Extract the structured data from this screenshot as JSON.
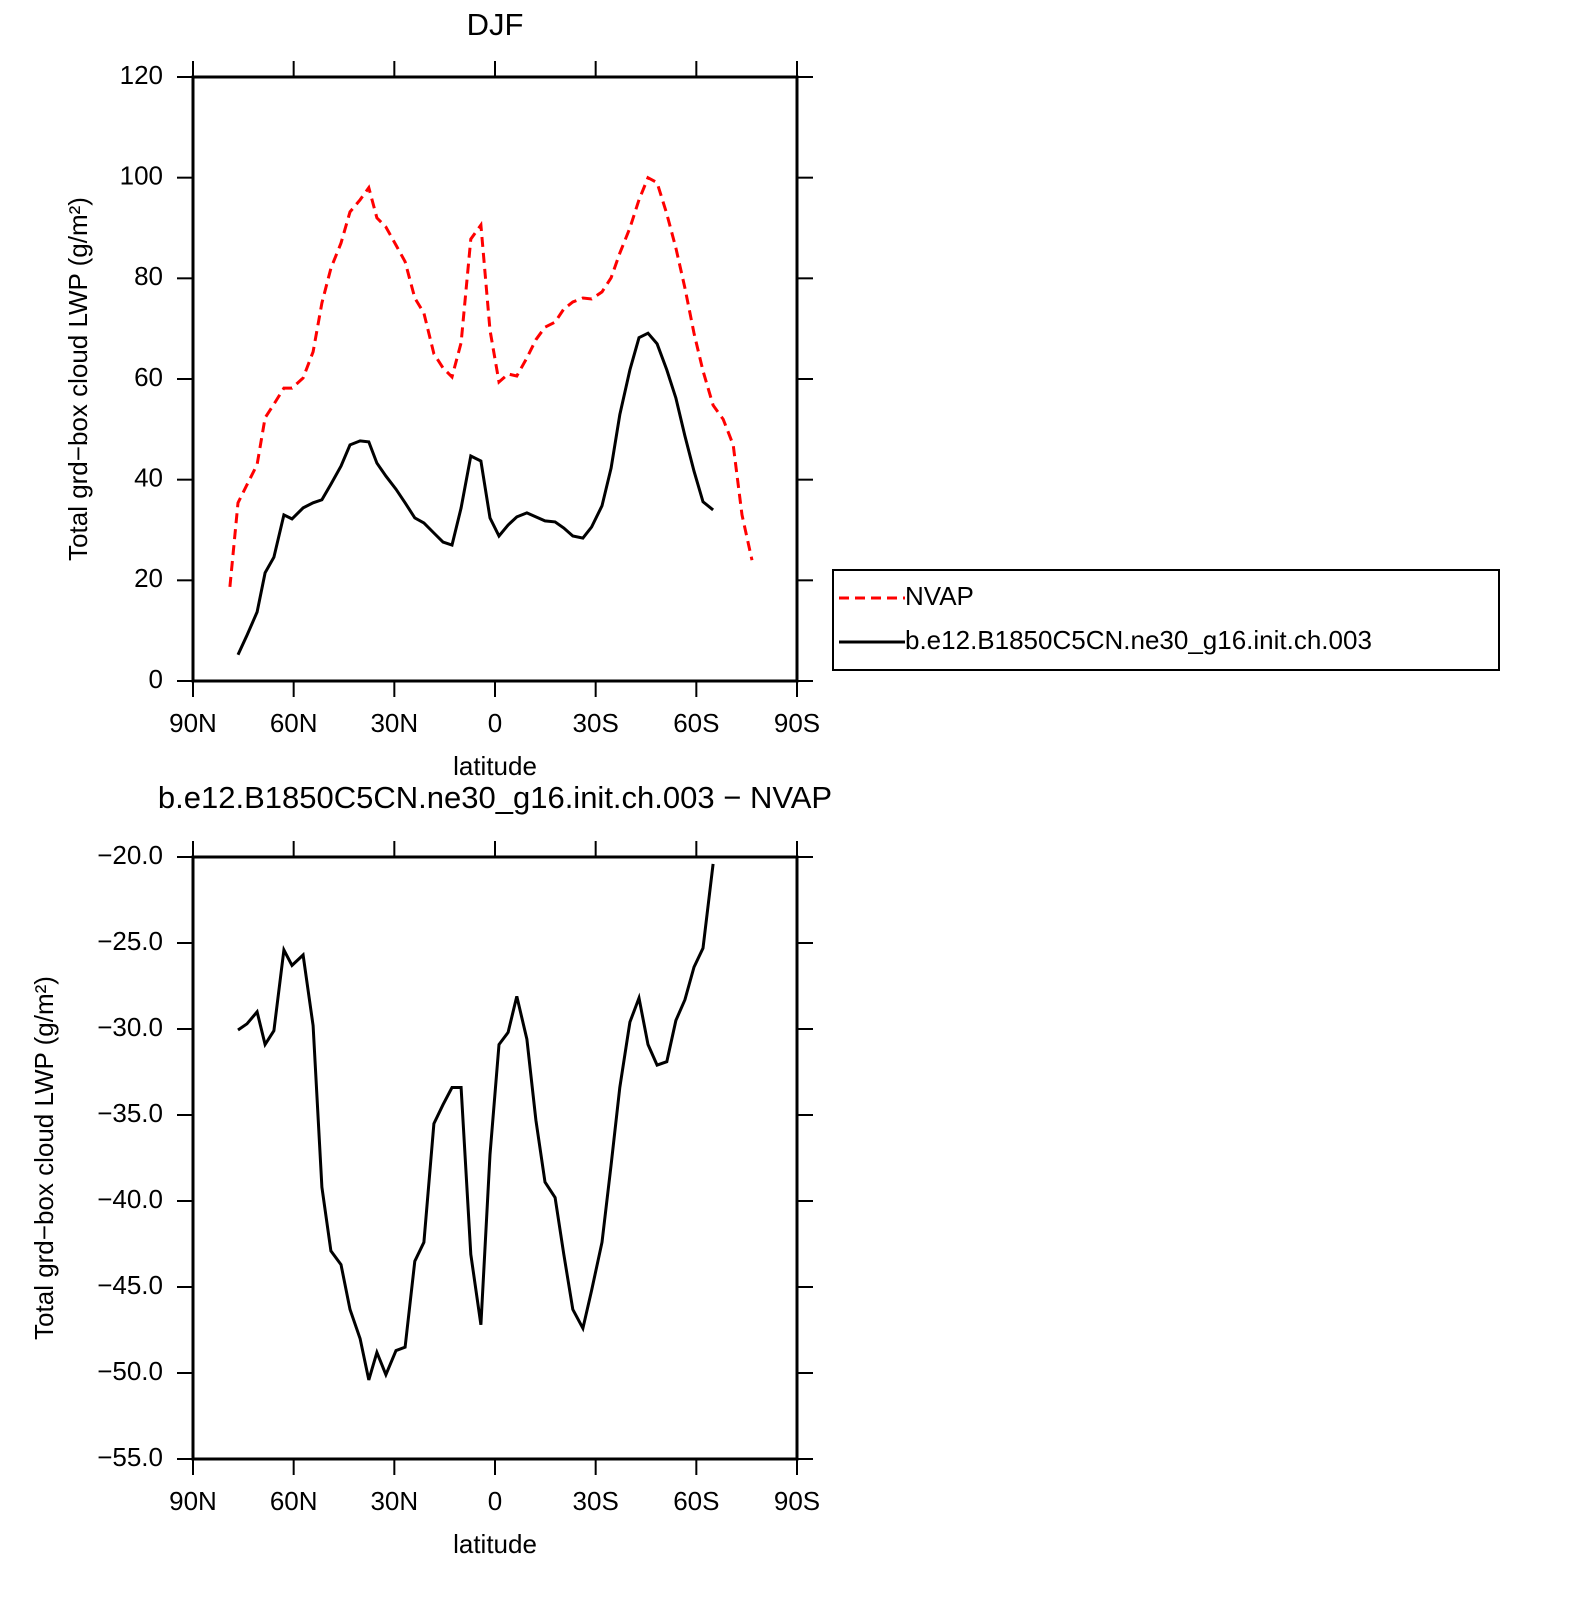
{
  "chart_data": [
    {
      "type": "line",
      "title": "DJF",
      "xlabel": "latitude",
      "ylabel": "Total grd−box cloud LWP (g/m²)",
      "x": [
        79,
        76.6,
        73.9,
        70.9,
        68.5,
        65.9,
        62.9,
        60.5,
        57.2,
        54.2,
        51.6,
        48.9,
        45.9,
        43.2,
        40.2,
        37.6,
        35.2,
        32.5,
        29.5,
        26.8,
        23.9,
        21.2,
        18.2,
        15.5,
        12.8,
        10.1,
        7.2,
        4.2,
        1.5,
        -1.2,
        -3.9,
        -6.5,
        -9.5,
        -12.2,
        -14.9,
        -17.9,
        -20.5,
        -23.2,
        -26.2,
        -28.8,
        -31.9,
        -34.6,
        -37.2,
        -40.2,
        -42.9,
        -45.6,
        -48.3,
        -51.2,
        -53.9,
        -56.6,
        -59.3,
        -62,
        -65,
        -68,
        -71,
        -73.6,
        -76.6
      ],
      "series": [
        {
          "name": "NVAP",
          "color": "#ff0000",
          "line_style": "dashed",
          "values": [
            18.7,
            35.4,
            39,
            43,
            52.3,
            55,
            58.2,
            58.2,
            60.2,
            65.4,
            75.1,
            82,
            87,
            93.2,
            95.6,
            98,
            92,
            90.2,
            86.6,
            83.3,
            76.1,
            73.1,
            65,
            62.2,
            60.4,
            67.2,
            87.8,
            90.6,
            69.7,
            59.4,
            61,
            60.6,
            64.2,
            67.8,
            70.3,
            71.3,
            73.9,
            75.3,
            76.1,
            75.9,
            77.3,
            80.1,
            85,
            90,
            95.6,
            100,
            99,
            92.8,
            86,
            78.1,
            69.1,
            61.6,
            54.8,
            52,
            46.9,
            33,
            24
          ]
        },
        {
          "name": "b.e12.B1850C5CN.ne30_g16.init.ch.003",
          "color": "#000000",
          "line_style": "solid",
          "values": [
            null,
            5.2,
            9.1,
            13.7,
            21.5,
            24.6,
            33,
            32.2,
            34.4,
            35.4,
            36,
            39.1,
            42.7,
            46.9,
            47.7,
            47.5,
            43.3,
            40.7,
            38.1,
            35.4,
            32.4,
            31.4,
            29.4,
            27.6,
            27,
            34.4,
            44.7,
            43.7,
            32.4,
            28.8,
            31,
            32.6,
            33.4,
            32.6,
            31.8,
            31.6,
            30.4,
            28.8,
            28.4,
            30.6,
            34.8,
            42.3,
            52.9,
            61.8,
            68.2,
            69.1,
            67,
            61.8,
            56.2,
            48.7,
            41.7,
            35.6,
            34,
            null,
            null,
            null,
            null
          ]
        }
      ],
      "xlim": [
        90,
        -90
      ],
      "xticks": [
        {
          "value": 90,
          "label": "90N"
        },
        {
          "value": 60,
          "label": "60N"
        },
        {
          "value": 30,
          "label": "30N"
        },
        0,
        {
          "value": -30,
          "label": "30S"
        },
        {
          "value": -60,
          "label": "60S"
        },
        {
          "value": -90,
          "label": "90S"
        }
      ],
      "ylim": [
        0,
        120
      ],
      "yticks": [
        0,
        20,
        40,
        60,
        80,
        100,
        120
      ],
      "legend": "right"
    },
    {
      "type": "line",
      "title": "b.e12.B1850C5CN.ne30_g16.init.ch.003 − NVAP",
      "xlabel": "latitude",
      "ylabel": "Total grd−box cloud LWP (g/m²)",
      "x": [
        76.6,
        73.9,
        70.9,
        68.5,
        65.9,
        62.9,
        60.5,
        57.2,
        54.2,
        51.6,
        48.9,
        45.9,
        43.2,
        40.2,
        37.6,
        35.2,
        32.5,
        29.5,
        26.8,
        23.9,
        21.2,
        18.2,
        15.5,
        12.8,
        10.1,
        7.2,
        4.2,
        1.5,
        -1.2,
        -3.9,
        -6.5,
        -9.5,
        -12.2,
        -14.9,
        -17.9,
        -20.5,
        -23.2,
        -26.2,
        -28.8,
        -31.9,
        -34.6,
        -37.2,
        -40.2,
        -42.9,
        -45.6,
        -48.3,
        -51.2,
        -53.9,
        -56.6,
        -59.3,
        -62,
        -65
      ],
      "series": [
        {
          "color": "#000000",
          "line_style": "solid",
          "values": [
            -30.06,
            -29.7,
            -29,
            -30.9,
            -30.1,
            -25.4,
            -26.3,
            -25.7,
            -29.8,
            -39.2,
            -42.9,
            -43.7,
            -46.3,
            -48,
            -50.4,
            -48.8,
            -50.1,
            -48.7,
            -48.5,
            -43.5,
            -42.4,
            -35.5,
            -34.4,
            -33.4,
            -33.4,
            -43.1,
            -47.2,
            -37.3,
            -30.9,
            -30.2,
            -28.1,
            -30.6,
            -35.3,
            -38.9,
            -39.8,
            -43.1,
            -46.3,
            -47.4,
            -45.2,
            -42.4,
            -37.9,
            -33.4,
            -29.6,
            -28.2,
            -30.9,
            -32.1,
            -31.9,
            -29.5,
            -28.3,
            -26.4,
            -25.3,
            -20.4
          ]
        }
      ],
      "xlim": [
        90,
        -90
      ],
      "xticks": [
        {
          "value": 90,
          "label": "90N"
        },
        {
          "value": 60,
          "label": "60N"
        },
        {
          "value": 30,
          "label": "30N"
        },
        0,
        {
          "value": -30,
          "label": "30S"
        },
        {
          "value": -60,
          "label": "60S"
        },
        {
          "value": -90,
          "label": "90S"
        }
      ],
      "ylim": [
        -55,
        -20
      ],
      "yticks": [
        {
          "value": -55,
          "label": "−55.0"
        },
        {
          "value": -50,
          "label": "−50.0"
        },
        {
          "value": -45,
          "label": "−45.0"
        },
        {
          "value": -40,
          "label": "−40.0"
        },
        {
          "value": -35,
          "label": "−35.0"
        },
        {
          "value": -30,
          "label": "−30.0"
        },
        {
          "value": -25,
          "label": "−25.0"
        },
        {
          "value": -20,
          "label": "−20.0"
        }
      ]
    }
  ]
}
